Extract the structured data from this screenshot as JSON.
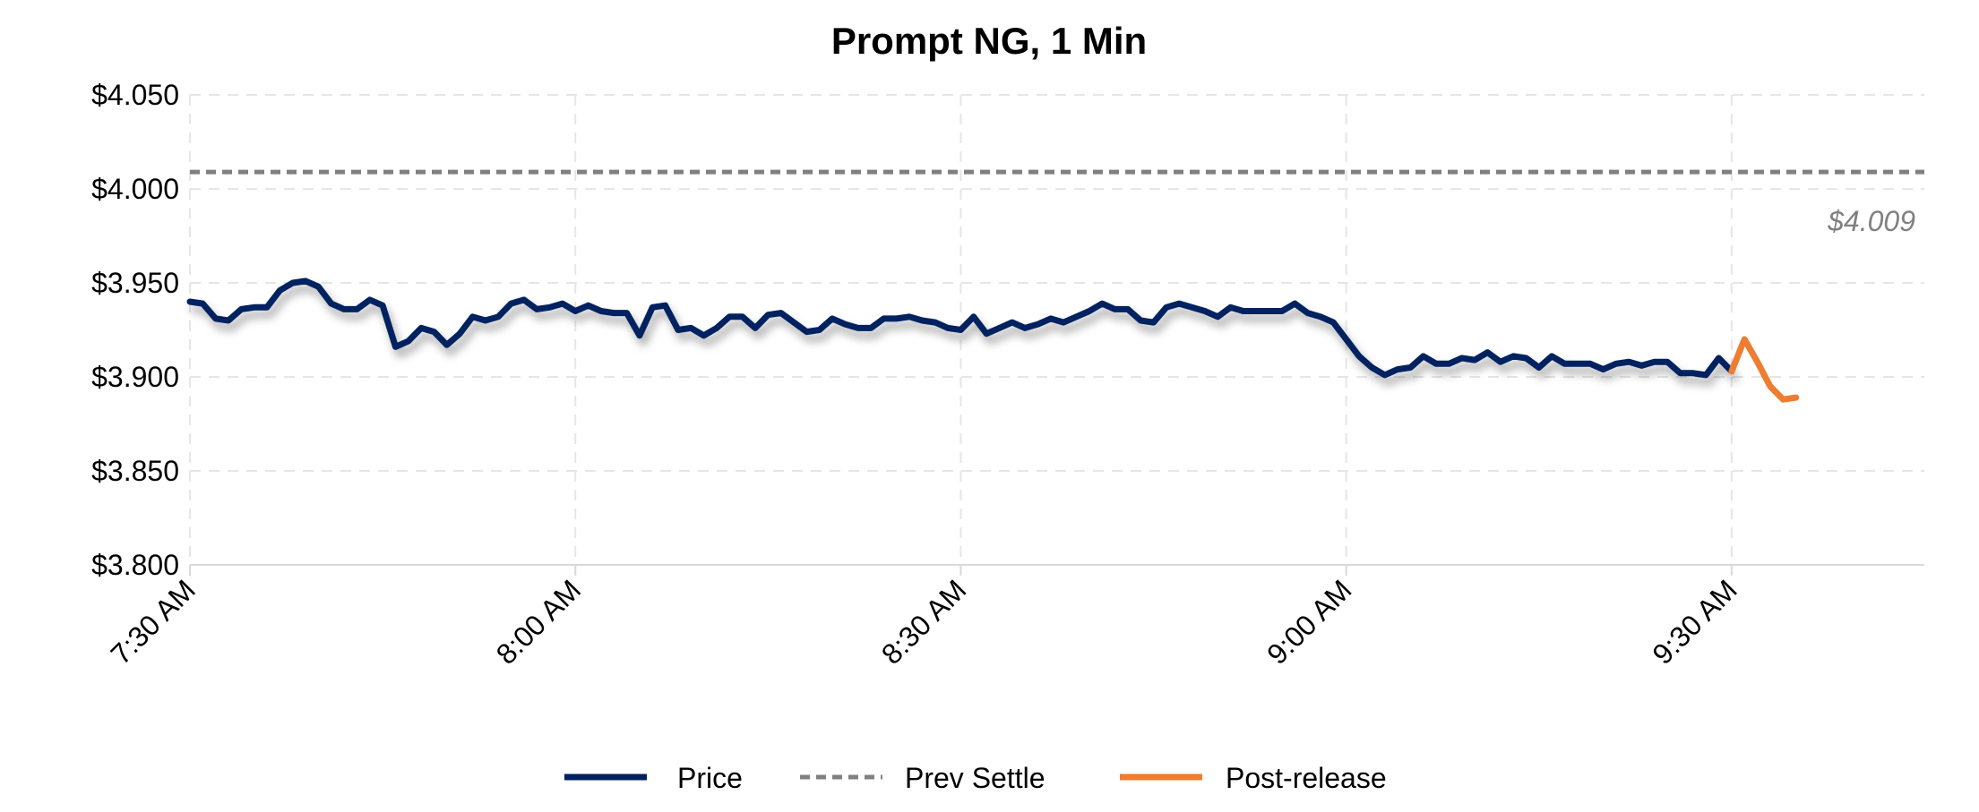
{
  "chart_data": {
    "type": "line",
    "title": "Prompt NG, 1 Min",
    "xlabel": "",
    "ylabel": "",
    "ylim": [
      3.8,
      4.05
    ],
    "yticks": [
      "$3.800",
      "$3.850",
      "$3.900",
      "$3.950",
      "$4.000",
      "$4.050"
    ],
    "ytick_values": [
      3.8,
      3.85,
      3.9,
      3.95,
      4.0,
      4.05
    ],
    "x_unit": "minutes since 7:30 AM",
    "xlim": [
      0,
      135
    ],
    "xticks": [
      {
        "label": "7:30 AM",
        "minute": 0
      },
      {
        "label": "8:00 AM",
        "minute": 30
      },
      {
        "label": "8:30 AM",
        "minute": 60
      },
      {
        "label": "9:00 AM",
        "minute": 90
      },
      {
        "label": "9:30 AM",
        "minute": 120
      }
    ],
    "grid": true,
    "legend_position": "bottom",
    "series": [
      {
        "name": "Price",
        "color": "#002060",
        "start_minute": 0,
        "values": [
          3.94,
          3.939,
          3.931,
          3.93,
          3.936,
          3.937,
          3.937,
          3.946,
          3.95,
          3.951,
          3.948,
          3.939,
          3.936,
          3.936,
          3.941,
          3.938,
          3.916,
          3.919,
          3.926,
          3.924,
          3.917,
          3.923,
          3.932,
          3.93,
          3.932,
          3.939,
          3.941,
          3.936,
          3.937,
          3.939,
          3.935,
          3.938,
          3.935,
          3.934,
          3.934,
          3.922,
          3.937,
          3.938,
          3.925,
          3.926,
          3.922,
          3.926,
          3.932,
          3.932,
          3.926,
          3.933,
          3.934,
          3.929,
          3.924,
          3.925,
          3.931,
          3.928,
          3.926,
          3.926,
          3.931,
          3.931,
          3.932,
          3.93,
          3.929,
          3.926,
          3.925,
          3.932,
          3.923,
          3.926,
          3.929,
          3.926,
          3.928,
          3.931,
          3.929,
          3.932,
          3.935,
          3.939,
          3.936,
          3.936,
          3.93,
          3.929,
          3.937,
          3.939,
          3.937,
          3.935,
          3.932,
          3.937,
          3.935,
          3.935,
          3.935,
          3.935,
          3.939,
          3.934,
          3.932,
          3.929,
          3.92,
          3.911,
          3.905,
          3.901,
          3.904,
          3.905,
          3.911,
          3.907,
          3.907,
          3.91,
          3.909,
          3.913,
          3.908,
          3.911,
          3.91,
          3.905,
          3.911,
          3.907,
          3.907,
          3.907,
          3.904,
          3.907,
          3.908,
          3.906,
          3.908,
          3.908,
          3.902,
          3.902,
          3.901,
          3.91,
          3.903
        ]
      },
      {
        "name": "Prev Settle",
        "color": "#808080",
        "dashed": true,
        "constant": 4.009
      },
      {
        "name": "Post-release",
        "color": "#ED7D31",
        "start_minute": 120,
        "values": [
          3.903,
          3.92,
          3.908,
          3.895,
          3.888,
          3.889
        ]
      }
    ],
    "annotations": [
      {
        "text": "$4.009",
        "value": 4.009,
        "series": "Prev Settle"
      }
    ]
  }
}
